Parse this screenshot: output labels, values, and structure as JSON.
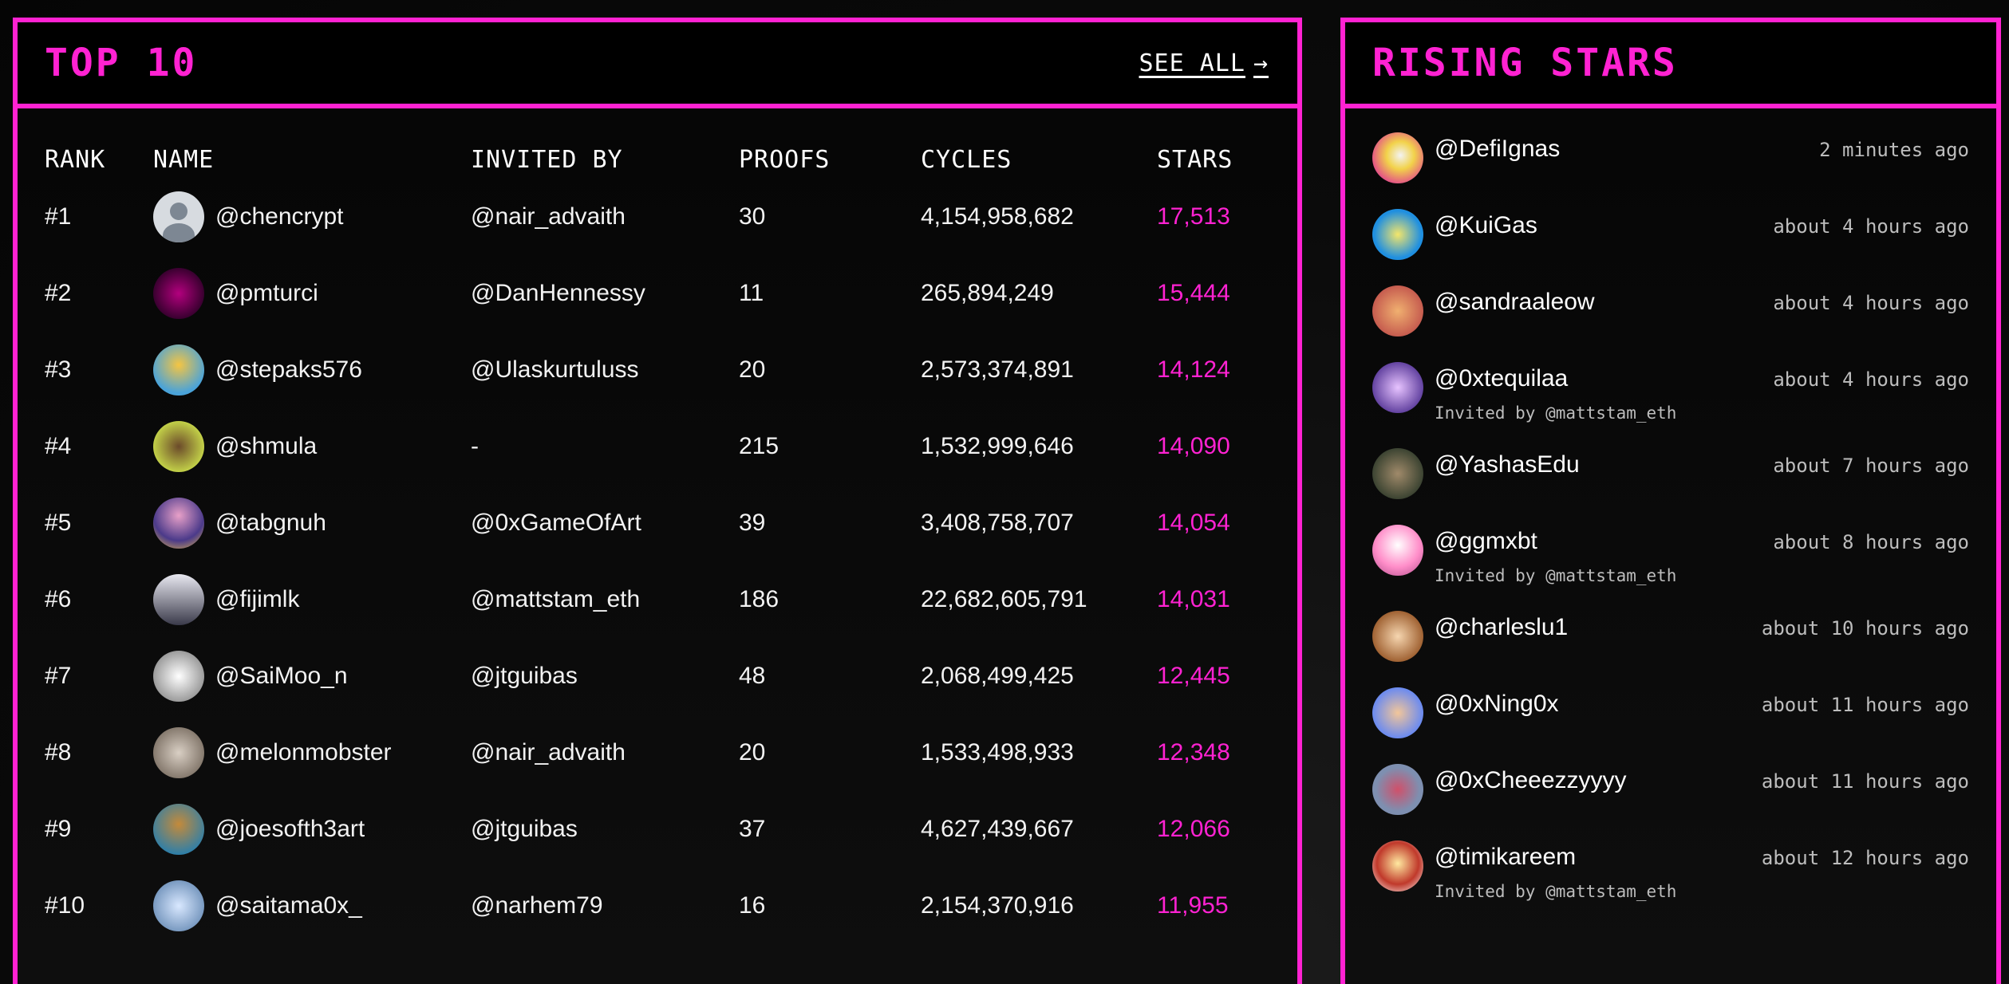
{
  "top10": {
    "title": "TOP 10",
    "see_all": "SEE ALL",
    "arrow": "→",
    "columns": {
      "rank": "RANK",
      "name": "NAME",
      "invited_by": "INVITED BY",
      "proofs": "PROOFS",
      "cycles": "CYCLES",
      "stars": "STARS"
    },
    "rows": [
      {
        "rank": "#1",
        "name": "@chencrypt",
        "invited_by": "@nair_advaith",
        "proofs": "30",
        "cycles": "4,154,958,682",
        "stars": "17,513"
      },
      {
        "rank": "#2",
        "name": "@pmturci",
        "invited_by": "@DanHennessy",
        "proofs": "11",
        "cycles": "265,894,249",
        "stars": "15,444"
      },
      {
        "rank": "#3",
        "name": "@stepaks576",
        "invited_by": "@Ulaskurtuluss",
        "proofs": "20",
        "cycles": "2,573,374,891",
        "stars": "14,124"
      },
      {
        "rank": "#4",
        "name": "@shmula",
        "invited_by": "-",
        "proofs": "215",
        "cycles": "1,532,999,646",
        "stars": "14,090"
      },
      {
        "rank": "#5",
        "name": "@tabgnuh",
        "invited_by": "@0xGameOfArt",
        "proofs": "39",
        "cycles": "3,408,758,707",
        "stars": "14,054"
      },
      {
        "rank": "#6",
        "name": "@fijimlk",
        "invited_by": "@mattstam_eth",
        "proofs": "186",
        "cycles": "22,682,605,791",
        "stars": "14,031"
      },
      {
        "rank": "#7",
        "name": "@SaiMoo_n",
        "invited_by": "@jtguibas",
        "proofs": "48",
        "cycles": "2,068,499,425",
        "stars": "12,445"
      },
      {
        "rank": "#8",
        "name": "@melonmobster",
        "invited_by": "@nair_advaith",
        "proofs": "20",
        "cycles": "1,533,498,933",
        "stars": "12,348"
      },
      {
        "rank": "#9",
        "name": "@joesofth3art",
        "invited_by": "@jtguibas",
        "proofs": "37",
        "cycles": "4,627,439,667",
        "stars": "12,066"
      },
      {
        "rank": "#10",
        "name": "@saitama0x_",
        "invited_by": "@narhem79",
        "proofs": "16",
        "cycles": "2,154,370,916",
        "stars": "11,955"
      }
    ]
  },
  "rising": {
    "title": "RISING STARS",
    "items": [
      {
        "name": "@DefiIgnas",
        "time": "2 minutes ago",
        "invited": ""
      },
      {
        "name": "@KuiGas",
        "time": "about 4 hours ago",
        "invited": ""
      },
      {
        "name": "@sandraaleow",
        "time": "about 4 hours ago",
        "invited": ""
      },
      {
        "name": "@0xtequilaa",
        "time": "about 4 hours ago",
        "invited": "Invited by @mattstam_eth"
      },
      {
        "name": "@YashasEdu",
        "time": "about 7 hours ago",
        "invited": ""
      },
      {
        "name": "@ggmxbt",
        "time": "about 8 hours ago",
        "invited": "Invited by @mattstam_eth"
      },
      {
        "name": "@charleslu1",
        "time": "about 10 hours ago",
        "invited": ""
      },
      {
        "name": "@0xNing0x",
        "time": "about 11 hours ago",
        "invited": ""
      },
      {
        "name": "@0xCheeezzyyyy",
        "time": "about 11 hours ago",
        "invited": ""
      },
      {
        "name": "@timikareem",
        "time": "about 12 hours ago",
        "invited": "Invited by @mattstam_eth"
      }
    ]
  },
  "colors": {
    "accent": "#ff22d2",
    "background": "#0b0b0b",
    "text": "#ffffff",
    "muted": "#bdbdbd"
  }
}
